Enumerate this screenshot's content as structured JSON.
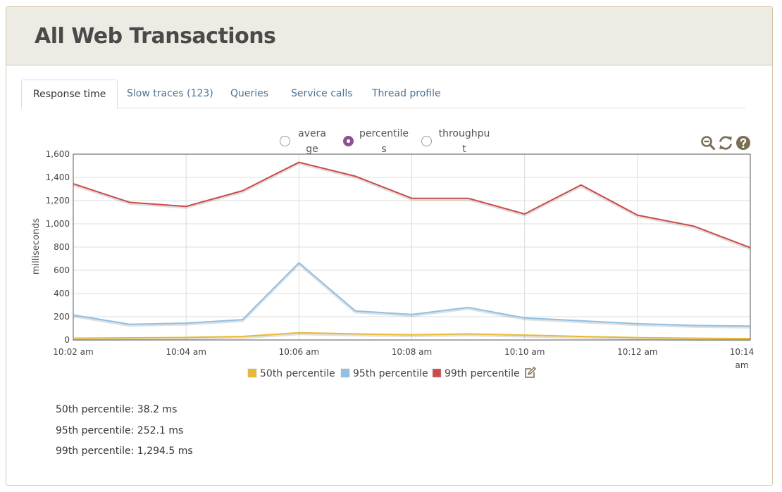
{
  "page": {
    "title": "All Web Transactions"
  },
  "tabs": [
    {
      "label": "Response time",
      "active": true
    },
    {
      "label": "Slow traces (123)",
      "active": false
    },
    {
      "label": "Queries",
      "active": false
    },
    {
      "label": "Service calls",
      "active": false
    },
    {
      "label": "Thread profile",
      "active": false
    }
  ],
  "view_options": [
    {
      "label": "average",
      "selected": false
    },
    {
      "label": "percentiles",
      "selected": true
    },
    {
      "label": "throughput",
      "selected": false
    }
  ],
  "toolbar": {
    "icons": [
      "zoom-out-icon",
      "refresh-icon",
      "help-icon"
    ],
    "icon_color": "#7a6f55"
  },
  "colors": {
    "p50": "#e8b931",
    "p95": "#8fc0e6",
    "p99": "#cc4b4b",
    "radio_selected": "#8e4f94",
    "link": "#4b7396"
  },
  "chart_data": {
    "type": "line",
    "ylabel": "milliseconds",
    "xlabel": "",
    "ylim": [
      0,
      1600
    ],
    "yticks": [
      "0",
      "200",
      "400",
      "600",
      "800",
      "1,000",
      "1,200",
      "1,400",
      "1,600"
    ],
    "x": [
      "10:02 am",
      "10:03 am",
      "10:04 am",
      "10:05 am",
      "10:06 am",
      "10:07 am",
      "10:08 am",
      "10:09 am",
      "10:10 am",
      "10:11 am",
      "10:12 am",
      "10:13 am",
      "10:14 am"
    ],
    "xticks": [
      "10:02 am",
      "10:04 am",
      "10:06 am",
      "10:08 am",
      "10:10 am",
      "10:12 am",
      "10:14 am"
    ],
    "grid": true,
    "legend_position": "bottom",
    "series": [
      {
        "name": "50th percentile",
        "values": [
          15,
          18,
          22,
          30,
          62,
          52,
          45,
          52,
          42,
          30,
          20,
          15,
          12
        ]
      },
      {
        "name": "95th percentile",
        "values": [
          215,
          135,
          145,
          175,
          665,
          250,
          220,
          280,
          190,
          165,
          140,
          125,
          120
        ]
      },
      {
        "name": "99th percentile",
        "values": [
          1345,
          1185,
          1150,
          1285,
          1530,
          1410,
          1220,
          1220,
          1085,
          1335,
          1075,
          980,
          795
        ]
      }
    ]
  },
  "summary": [
    {
      "label": "50th percentile: 38.2 ms"
    },
    {
      "label": "95th percentile: 252.1 ms"
    },
    {
      "label": "99th percentile: 1,294.5 ms"
    }
  ]
}
